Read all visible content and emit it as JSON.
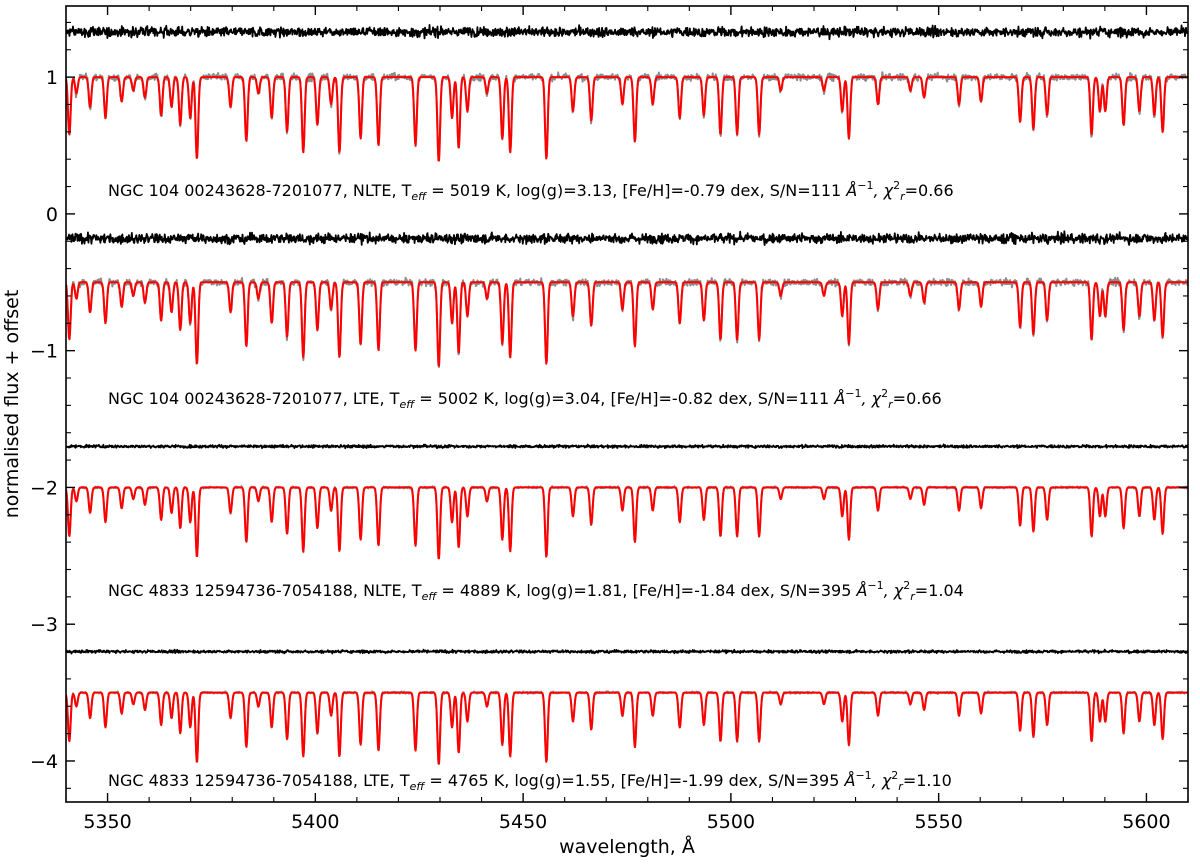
{
  "chart_data": {
    "type": "line",
    "title": "",
    "xlabel": "wavelength, Å",
    "ylabel": "normalised flux + offset",
    "xlim": [
      5340,
      5610
    ],
    "ylim": [
      -4.3,
      1.52
    ],
    "xticks": [
      5350,
      5400,
      5450,
      5500,
      5550,
      5600
    ],
    "yticks": [
      1,
      0,
      -1,
      -2,
      -3,
      -4
    ],
    "ytick_labels": [
      "1",
      "0",
      "−1",
      "−2",
      "−3",
      "−4"
    ],
    "grid": false,
    "colors": {
      "observed": "#8c8c8c",
      "model": "#ff0000",
      "residual": "#000000"
    },
    "panels": [
      {
        "continuum": 1.0,
        "residual_level": 1.33,
        "noise": 0.035,
        "residual_noise": 0.035,
        "depth_scale": 1.0,
        "annotation": {
          "prefix": "NGC 104 00243628-7201077, NLTE, T",
          "teff_sub": "eff",
          "teff": " = 5019 K, log(g)=3.13, [Fe/H]=-0.79 dex, S/N=111 ",
          "unit": "Å",
          "unit_sup": "−1",
          "chi_pre": ", χ",
          "chi_sub": "r",
          "chi_sup": "2",
          "chi_val": "=0.66"
        }
      },
      {
        "continuum": -0.5,
        "residual_level": -0.18,
        "noise": 0.035,
        "residual_noise": 0.035,
        "depth_scale": 1.0,
        "annotation": {
          "prefix": "NGC 104 00243628-7201077, LTE, T",
          "teff_sub": "eff",
          "teff": " = 5002 K, log(g)=3.04, [Fe/H]=-0.82 dex, S/N=111 ",
          "unit": "Å",
          "unit_sup": "−1",
          "chi_pre": ", χ",
          "chi_sub": "r",
          "chi_sup": "2",
          "chi_val": "=0.66"
        }
      },
      {
        "continuum": -2.0,
        "residual_level": -1.7,
        "noise": 0.01,
        "residual_noise": 0.01,
        "depth_scale": 0.85,
        "annotation": {
          "prefix": "NGC 4833 12594736-7054188, NLTE, T",
          "teff_sub": "eff",
          "teff": " = 4889 K, log(g)=1.81, [Fe/H]=-1.84 dex, S/N=395 ",
          "unit": "Å",
          "unit_sup": "−1",
          "chi_pre": ", χ",
          "chi_sub": "r",
          "chi_sup": "2",
          "chi_val": "=1.04"
        }
      },
      {
        "continuum": -3.5,
        "residual_level": -3.2,
        "noise": 0.01,
        "residual_noise": 0.01,
        "depth_scale": 0.85,
        "annotation": {
          "prefix": "NGC 4833 12594736-7054188, LTE, T",
          "teff_sub": "eff",
          "teff": " = 4765 K, log(g)=1.55, [Fe/H]=-1.99 dex, S/N=395 ",
          "unit": "Å",
          "unit_sup": "−1",
          "chi_pre": ", χ",
          "chi_sub": "r",
          "chi_sup": "2",
          "chi_val": "=1.10"
        }
      }
    ],
    "absorption_lines": [
      [
        5340.8,
        0.42
      ],
      [
        5342.5,
        0.12
      ],
      [
        5345.8,
        0.22
      ],
      [
        5349.5,
        0.3
      ],
      [
        5353.4,
        0.18
      ],
      [
        5356.2,
        0.1
      ],
      [
        5359.0,
        0.15
      ],
      [
        5362.9,
        0.28
      ],
      [
        5365.4,
        0.22
      ],
      [
        5367.5,
        0.35
      ],
      [
        5369.9,
        0.3
      ],
      [
        5371.5,
        0.6
      ],
      [
        5379.6,
        0.22
      ],
      [
        5383.4,
        0.47
      ],
      [
        5386.3,
        0.12
      ],
      [
        5389.5,
        0.3
      ],
      [
        5393.2,
        0.4
      ],
      [
        5397.1,
        0.55
      ],
      [
        5400.5,
        0.35
      ],
      [
        5403.8,
        0.2
      ],
      [
        5405.8,
        0.55
      ],
      [
        5410.9,
        0.45
      ],
      [
        5415.2,
        0.5
      ],
      [
        5424.1,
        0.5
      ],
      [
        5429.7,
        0.62
      ],
      [
        5432.9,
        0.3
      ],
      [
        5434.5,
        0.52
      ],
      [
        5436.6,
        0.25
      ],
      [
        5441.3,
        0.12
      ],
      [
        5445.0,
        0.45
      ],
      [
        5446.9,
        0.55
      ],
      [
        5455.6,
        0.6
      ],
      [
        5462.0,
        0.25
      ],
      [
        5466.4,
        0.32
      ],
      [
        5473.9,
        0.2
      ],
      [
        5476.9,
        0.47
      ],
      [
        5481.2,
        0.2
      ],
      [
        5487.7,
        0.3
      ],
      [
        5493.5,
        0.28
      ],
      [
        5497.5,
        0.42
      ],
      [
        5501.5,
        0.42
      ],
      [
        5506.8,
        0.42
      ],
      [
        5512.0,
        0.1
      ],
      [
        5522.4,
        0.1
      ],
      [
        5526.8,
        0.25
      ],
      [
        5528.4,
        0.45
      ],
      [
        5535.4,
        0.2
      ],
      [
        5543.2,
        0.1
      ],
      [
        5546.5,
        0.15
      ],
      [
        5554.9,
        0.2
      ],
      [
        5560.2,
        0.18
      ],
      [
        5569.6,
        0.33
      ],
      [
        5572.8,
        0.38
      ],
      [
        5576.1,
        0.28
      ],
      [
        5586.8,
        0.42
      ],
      [
        5588.8,
        0.25
      ],
      [
        5590.1,
        0.25
      ],
      [
        5594.5,
        0.35
      ],
      [
        5598.3,
        0.25
      ],
      [
        5601.9,
        0.28
      ],
      [
        5603.9,
        0.4
      ]
    ]
  }
}
